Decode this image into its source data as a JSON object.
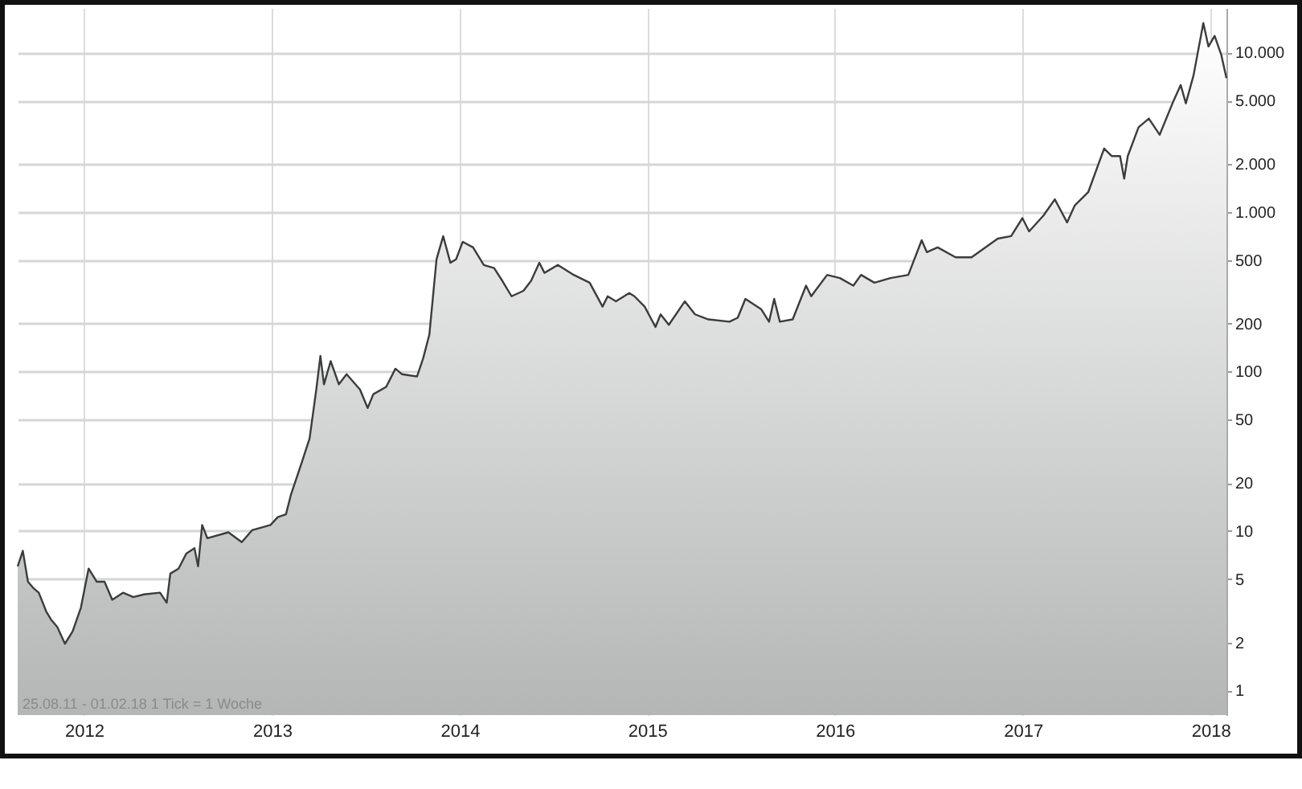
{
  "chart_data": {
    "type": "area",
    "x": [
      "2011-08-25",
      "2011-09-04",
      "2011-09-14",
      "2011-09-24",
      "2011-10-05",
      "2011-10-20",
      "2011-10-30",
      "2011-11-10",
      "2011-11-25",
      "2011-12-10",
      "2011-12-26",
      "2012-01-10",
      "2012-01-26",
      "2012-02-10",
      "2012-02-25",
      "2012-03-17",
      "2012-04-06",
      "2012-04-27",
      "2012-05-28",
      "2012-06-10",
      "2012-06-17",
      "2012-07-03",
      "2012-07-18",
      "2012-08-03",
      "2012-08-10",
      "2012-08-18",
      "2012-08-28",
      "2012-10-08",
      "2012-11-03",
      "2012-11-23",
      "2012-12-29",
      "2013-01-12",
      "2013-01-28",
      "2013-02-07",
      "2013-02-28",
      "2013-03-15",
      "2013-03-28",
      "2013-04-05",
      "2013-04-12",
      "2013-04-25",
      "2013-05-11",
      "2013-05-26",
      "2013-06-21",
      "2013-07-06",
      "2013-07-17",
      "2013-08-11",
      "2013-08-29",
      "2013-09-11",
      "2013-10-10",
      "2013-10-22",
      "2013-11-03",
      "2013-11-17",
      "2013-11-30",
      "2013-12-14",
      "2013-12-25",
      "2014-01-07",
      "2014-01-27",
      "2014-02-17",
      "2014-03-09",
      "2014-03-25",
      "2014-04-12",
      "2014-05-05",
      "2014-05-20",
      "2014-06-05",
      "2014-06-15",
      "2014-07-11",
      "2014-08-11",
      "2014-09-11",
      "2014-10-06",
      "2014-10-16",
      "2014-11-01",
      "2014-11-27",
      "2014-12-07",
      "2014-12-27",
      "2015-01-17",
      "2015-01-27",
      "2015-02-12",
      "2015-03-15",
      "2015-04-04",
      "2015-04-30",
      "2015-06-10",
      "2015-06-26",
      "2015-07-11",
      "2015-08-11",
      "2015-08-26",
      "2015-09-05",
      "2015-09-16",
      "2015-10-11",
      "2015-11-06",
      "2015-11-16",
      "2015-12-17",
      "2016-01-11",
      "2016-02-06",
      "2016-02-21",
      "2016-03-18",
      "2016-04-18",
      "2016-05-23",
      "2016-06-18",
      "2016-06-28",
      "2016-07-19",
      "2016-08-23",
      "2016-09-23",
      "2016-11-13",
      "2016-12-09",
      "2016-12-31",
      "2017-01-13",
      "2017-02-10",
      "2017-03-04",
      "2017-03-28",
      "2017-04-12",
      "2017-05-08",
      "2017-06-08",
      "2017-06-23",
      "2017-07-09",
      "2017-07-17",
      "2017-07-24",
      "2017-08-14",
      "2017-09-03",
      "2017-09-24",
      "2017-10-19",
      "2017-11-04",
      "2017-11-14",
      "2017-11-29",
      "2017-12-18",
      "2017-12-28",
      "2018-01-09",
      "2018-01-22",
      "2018-02-01"
    ],
    "series": [
      {
        "color": "#3c3c3c",
        "values": [
          6.0,
          7.5,
          4.8,
          4.4,
          4.1,
          3.1,
          2.75,
          2.5,
          1.96,
          2.35,
          3.3,
          5.8,
          4.8,
          4.8,
          3.7,
          4.1,
          3.85,
          4.0,
          4.1,
          3.55,
          5.4,
          5.8,
          7.2,
          7.8,
          6.0,
          10.9,
          9.0,
          9.8,
          8.5,
          10.1,
          10.9,
          12.2,
          12.7,
          17,
          27,
          38,
          77,
          125,
          83,
          116,
          83,
          96,
          77,
          59,
          72,
          80,
          104,
          96,
          93,
          121,
          170,
          505,
          705,
          480,
          505,
          650,
          600,
          465,
          445,
          370,
          296,
          320,
          370,
          480,
          415,
          465,
          403,
          360,
          255,
          296,
          275,
          310,
          296,
          255,
          190,
          228,
          196,
          275,
          228,
          212,
          205,
          217,
          285,
          245,
          205,
          285,
          205,
          212,
          345,
          296,
          403,
          385,
          345,
          403,
          360,
          385,
          403,
          665,
          560,
          600,
          520,
          520,
          680,
          705,
          915,
          755,
          950,
          1200,
          860,
          1100,
          1330,
          2500,
          2240,
          2240,
          1620,
          2240,
          3400,
          3850,
          3050,
          4800,
          6250,
          4800,
          7200,
          15300,
          10900,
          12700,
          9650,
          6900
        ]
      }
    ],
    "xlim": [
      "2011-08-25",
      "2018-02-01"
    ],
    "xticks": [
      "2012",
      "2013",
      "2014",
      "2015",
      "2016",
      "2017",
      "2018"
    ],
    "ylim": [
      0.7,
      19000
    ],
    "yticks": [
      1,
      2,
      5,
      10,
      20,
      50,
      100,
      200,
      500,
      {
        "value": 1000,
        "label": "1.000"
      },
      {
        "value": 2000,
        "label": "2.000"
      },
      {
        "value": 5000,
        "label": "5.000"
      },
      {
        "value": 10000,
        "label": "10.000"
      }
    ],
    "log": true,
    "grid": true,
    "annotations": [
      "25.08.11 - 01.02.18  1 Tick = 1 Woche"
    ]
  }
}
